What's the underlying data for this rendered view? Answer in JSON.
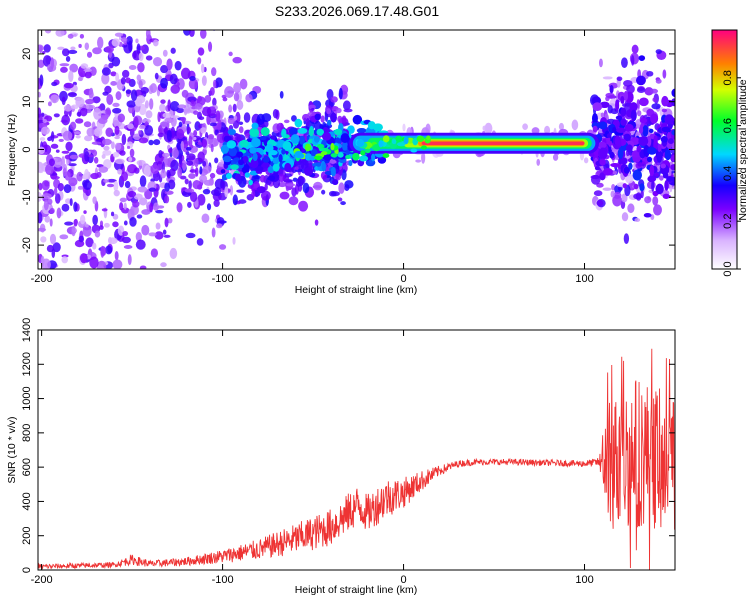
{
  "title": "S233.2026.069.17.48.G01",
  "chart_data": [
    {
      "type": "heatmap",
      "xlabel": "Height of straight line (km)",
      "ylabel": "Frequency (Hz)",
      "xlim": [
        -202,
        150
      ],
      "ylim": [
        -25,
        25
      ],
      "xticks": [
        -200,
        -100,
        0,
        100
      ],
      "yticks": [
        -20,
        -10,
        0,
        10,
        20
      ],
      "x_tick_labels": [
        "-200",
        "-100",
        "0",
        "100"
      ],
      "y_tick_labels": [
        "-20",
        "-10",
        "0",
        "10",
        "20"
      ],
      "colorbar": {
        "label": "Normalized spectral amplitude",
        "range": [
          0,
          1
        ],
        "ticks": [
          0.0,
          0.2,
          0.4,
          0.6,
          0.8
        ],
        "tick_labels": [
          "0.0",
          "0.2",
          "0.4",
          "0.6",
          "0.8"
        ]
      },
      "ridge": {
        "frequency_hz": 1.3,
        "strong_range_km": [
          -30,
          108
        ],
        "peak_range_km": [
          10,
          100
        ],
        "peak_amplitude": 0.95
      }
    },
    {
      "type": "line",
      "xlabel": "Height of straight line (km)",
      "ylabel": "SNR (10 * v/v)",
      "xlim": [
        -202,
        150
      ],
      "ylim": [
        0,
        1400
      ],
      "xticks": [
        -200,
        -100,
        0,
        100
      ],
      "yticks": [
        0,
        200,
        400,
        600,
        800,
        1000,
        1200,
        1400
      ],
      "x_tick_labels": [
        "-200",
        "-100",
        "0",
        "100"
      ],
      "y_tick_labels": [
        "0",
        "200",
        "400",
        "600",
        "800",
        "1000",
        "1200",
        "1400"
      ],
      "color": "#ee3333",
      "x": [
        -200,
        -180,
        -160,
        -150,
        -140,
        -120,
        -100,
        -80,
        -60,
        -40,
        -25,
        -20,
        -10,
        0,
        10,
        20,
        30,
        40,
        60,
        80,
        100,
        108,
        112,
        120,
        130,
        140,
        150
      ],
      "y": [
        20,
        25,
        30,
        60,
        35,
        50,
        80,
        120,
        180,
        250,
        380,
        330,
        420,
        450,
        520,
        580,
        620,
        630,
        630,
        625,
        620,
        630,
        600,
        650,
        700,
        650,
        600
      ],
      "noise_amplitude": [
        15,
        15,
        15,
        30,
        20,
        25,
        40,
        60,
        90,
        110,
        120,
        110,
        120,
        90,
        60,
        30,
        20,
        18,
        18,
        18,
        20,
        25,
        380,
        420,
        450,
        420,
        400
      ]
    }
  ]
}
